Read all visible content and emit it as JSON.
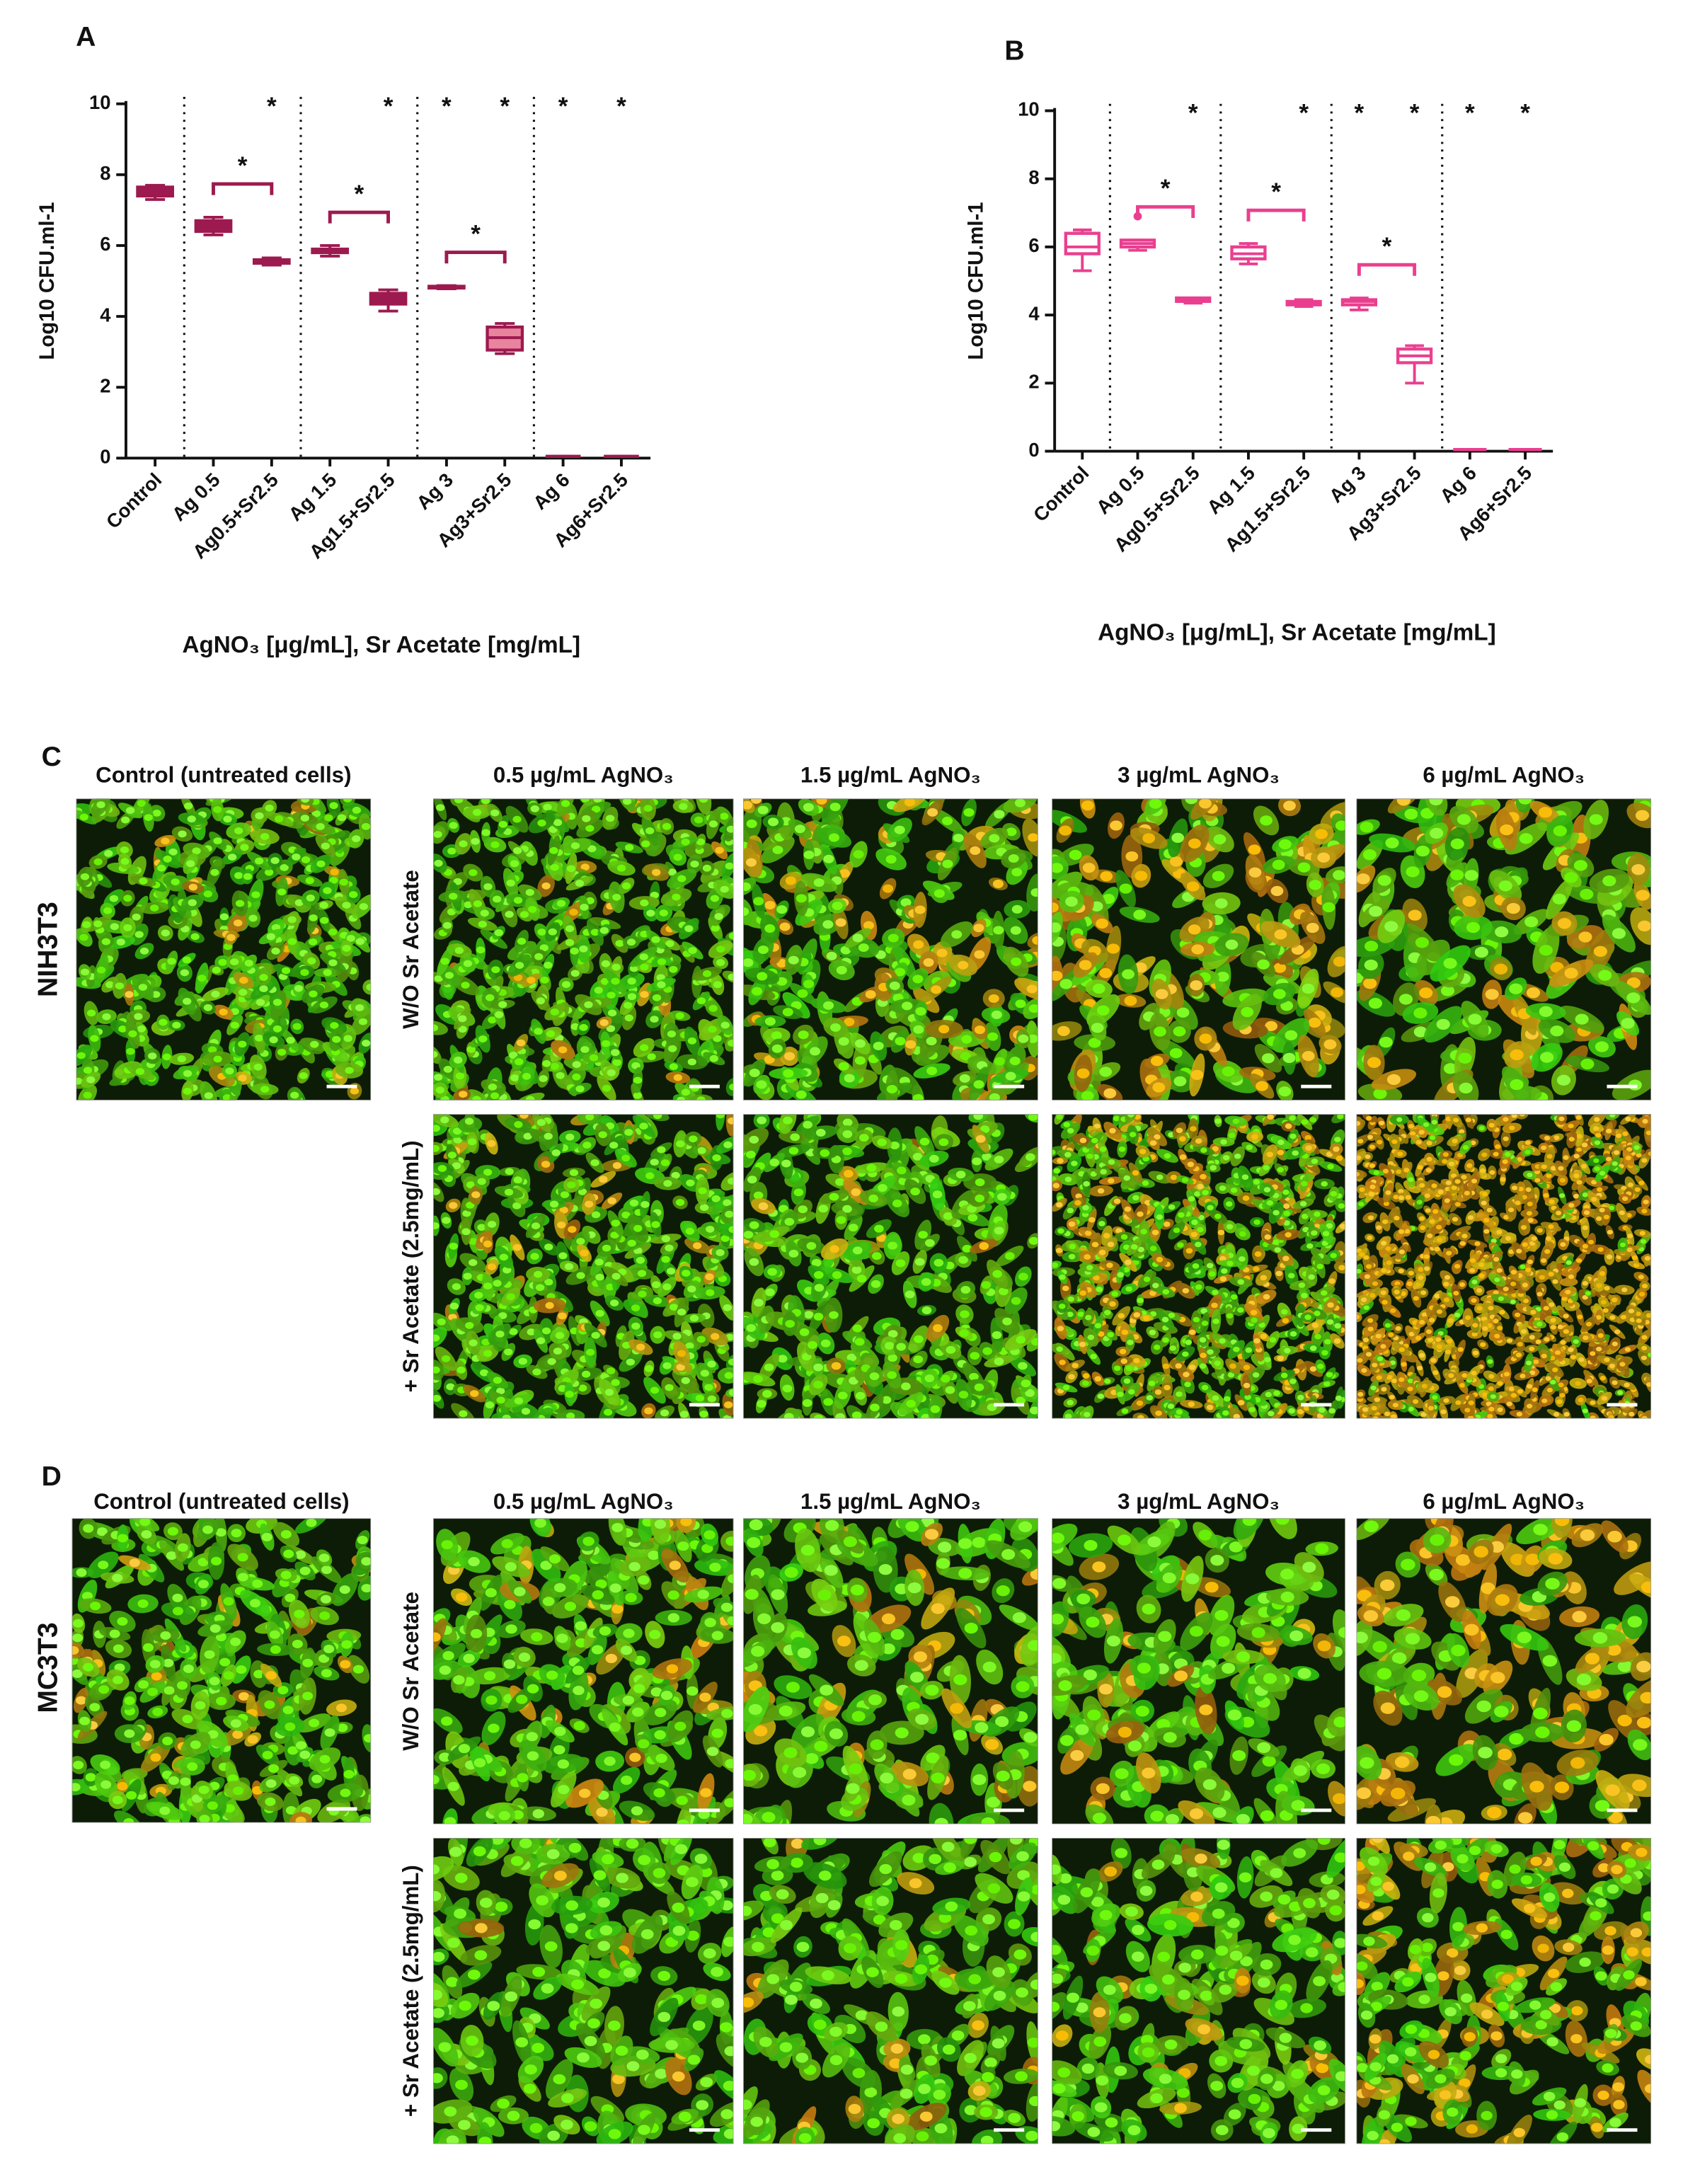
{
  "chart_data": [
    {
      "type": "box",
      "panel": "A",
      "ylabel": "Log10 CFU.ml-1",
      "xlabel": "AgNO₃ [μg/mL], Sr Acetate [mg/mL]",
      "categories": [
        "Control",
        "Ag 0.5",
        "Ag0.5+Sr2.5",
        "Ag 1.5",
        "Ag1.5+Sr2.5",
        "Ag 3",
        "Ag3+Sr2.5",
        "Ag 6",
        "Ag6+Sr2.5"
      ],
      "min": [
        7.3,
        6.3,
        5.45,
        5.7,
        4.15,
        4.78,
        2.95,
        0.05,
        0.05
      ],
      "q1": [
        7.4,
        6.4,
        5.5,
        5.8,
        4.35,
        4.8,
        3.05,
        0.05,
        0.05
      ],
      "median": [
        7.55,
        6.55,
        5.55,
        5.85,
        4.5,
        4.82,
        3.4,
        0.05,
        0.05
      ],
      "q3": [
        7.65,
        6.7,
        5.6,
        5.9,
        4.65,
        4.85,
        3.7,
        0.05,
        0.05
      ],
      "max": [
        7.7,
        6.8,
        5.65,
        6.0,
        4.75,
        4.87,
        3.8,
        0.05,
        0.05
      ],
      "outliers": [],
      "color": "#9c1a4f",
      "box_fills": [
        "#9c1a4f",
        "#9c1a4f",
        "#9c1a4f",
        "#9c1a4f",
        "#9c1a4f",
        "#9c1a4f",
        "#e9849f",
        "#9c1a4f",
        "#9c1a4f"
      ],
      "ylim": [
        0,
        10
      ],
      "yticks": [
        0,
        2,
        4,
        6,
        8,
        10
      ],
      "group_separators_after": [
        0,
        2,
        4,
        6
      ],
      "top_marks": [
        {
          "category": 2,
          "text": "*"
        },
        {
          "category": 4,
          "text": "*"
        },
        {
          "category": 5,
          "text": "*"
        },
        {
          "category": 6,
          "text": "*"
        },
        {
          "category": 7,
          "text": "*"
        },
        {
          "category": 8,
          "text": "*"
        }
      ],
      "brackets": [
        {
          "from": 1,
          "to": 2,
          "text": "*"
        },
        {
          "from": 3,
          "to": 4,
          "text": "*"
        },
        {
          "from": 5,
          "to": 6,
          "text": "*"
        }
      ]
    },
    {
      "type": "box",
      "panel": "B",
      "ylabel": "Log10 CFU.ml-1",
      "xlabel": "AgNO₃ [μg/mL], Sr Acetate [mg/mL]",
      "categories": [
        "Control",
        "Ag 0.5",
        "Ag0.5+Sr2.5",
        "Ag 1.5",
        "Ag1.5+Sr2.5",
        "Ag 3",
        "Ag3+Sr2.5",
        "Ag 6",
        "Ag6+Sr2.5"
      ],
      "min": [
        5.3,
        5.9,
        4.35,
        5.5,
        4.25,
        4.15,
        2.0,
        0.05,
        0.05
      ],
      "q1": [
        5.8,
        6.0,
        4.4,
        5.65,
        4.3,
        4.3,
        2.6,
        0.05,
        0.05
      ],
      "median": [
        6.0,
        6.1,
        4.45,
        5.8,
        4.35,
        4.4,
        2.8,
        0.05,
        0.05
      ],
      "q3": [
        6.4,
        6.2,
        4.5,
        6.0,
        4.4,
        4.45,
        3.0,
        0.05,
        0.05
      ],
      "max": [
        6.5,
        6.2,
        4.5,
        6.1,
        4.45,
        4.5,
        3.1,
        0.05,
        0.05
      ],
      "outliers": [
        {
          "category": 1,
          "value": 6.9
        }
      ],
      "color": "#ea3f8f",
      "box_fills": [
        "#ffffff",
        "#ffffff",
        "#ffffff",
        "#ffffff",
        "#ffffff",
        "#ffffff",
        "#ffffff",
        "#ffffff",
        "#ffffff"
      ],
      "ylim": [
        0,
        10
      ],
      "yticks": [
        0,
        2,
        4,
        6,
        8,
        10
      ],
      "group_separators_after": [
        0,
        2,
        4,
        6
      ],
      "top_marks": [
        {
          "category": 2,
          "text": "*"
        },
        {
          "category": 4,
          "text": "*"
        },
        {
          "category": 5,
          "text": "*"
        },
        {
          "category": 6,
          "text": "*"
        },
        {
          "category": 7,
          "text": "*"
        },
        {
          "category": 8,
          "text": "*"
        }
      ],
      "brackets": [
        {
          "from": 1,
          "to": 2,
          "text": "*"
        },
        {
          "from": 3,
          "to": 4,
          "text": "*"
        },
        {
          "from": 5,
          "to": 6,
          "text": "*"
        }
      ]
    }
  ],
  "image_panels": [
    {
      "panel": "C",
      "cell_line": "NIH3T3",
      "control_title": "Control (untreated cells)",
      "column_titles": [
        "0.5 µg/mL AgNO₃",
        "1.5 µg/mL AgNO₃",
        "3 µg/mL AgNO₃",
        "6 µg/mL AgNO₃"
      ],
      "row_titles": [
        "W/O Sr Acetate",
        "+ Sr Acetate (2.5mg/mL)"
      ]
    },
    {
      "panel": "D",
      "cell_line": "MC3T3",
      "control_title": "Control (untreated cells)",
      "column_titles": [
        "0.5 µg/mL AgNO₃",
        "1.5 µg/mL AgNO₃",
        "3 µg/mL AgNO₃",
        "6 µg/mL AgNO₃"
      ],
      "row_titles": [
        "W/O Sr Acetate",
        "+ Sr Acetate (2.5mg/mL)"
      ]
    }
  ]
}
